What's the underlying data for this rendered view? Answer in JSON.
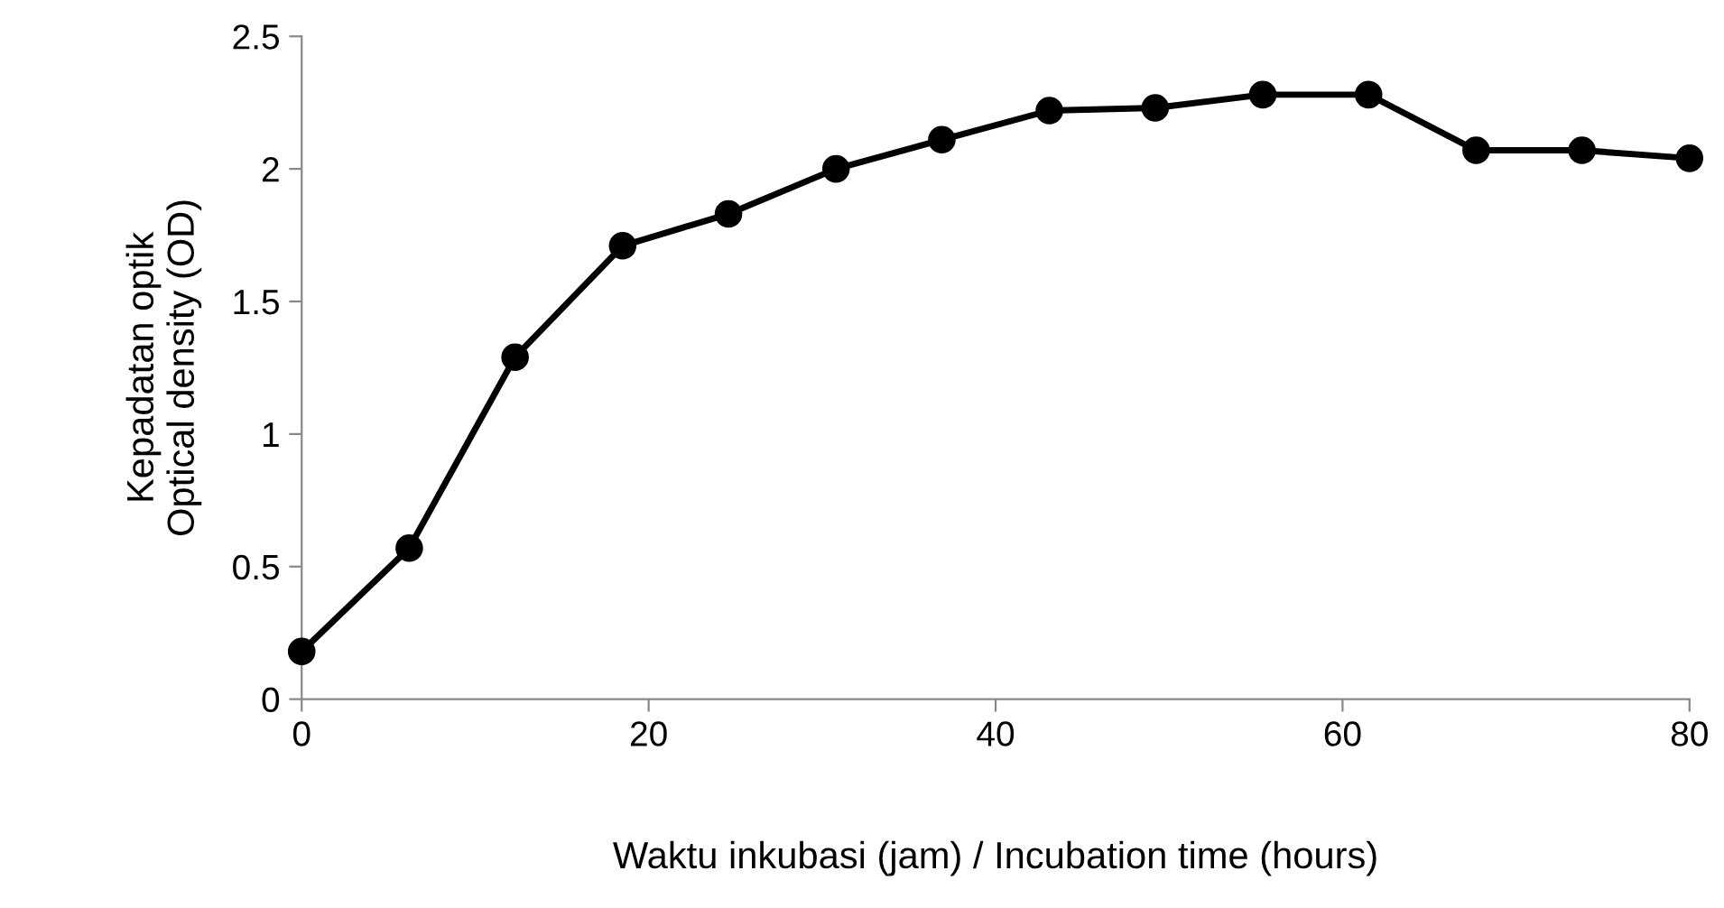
{
  "chart_data": {
    "type": "line",
    "xlabel": "Waktu inkubasi (jam) / Incubation time (hours)",
    "ylabel": "Kepadatan optik\nOptical density (OD)",
    "x": [
      0,
      6.2,
      12.3,
      18.5,
      24.6,
      30.8,
      36.9,
      43.1,
      49.2,
      55.4,
      61.5,
      67.7,
      73.8,
      80
    ],
    "series": [
      {
        "color": "#000000",
        "values": [
          0.18,
          0.57,
          1.29,
          1.71,
          1.83,
          2.0,
          2.11,
          2.22,
          2.23,
          2.28,
          2.28,
          2.07,
          2.07,
          2.04
        ]
      }
    ],
    "xlim": [
      0,
      80
    ],
    "xticks": [
      0,
      20,
      40,
      60,
      80
    ],
    "ylim": [
      0,
      2.5
    ],
    "yticks": [
      0,
      0.5,
      1,
      1.5,
      2,
      2.5
    ],
    "grid": false,
    "legend": false,
    "marker": "circle",
    "line_style": "solid"
  }
}
